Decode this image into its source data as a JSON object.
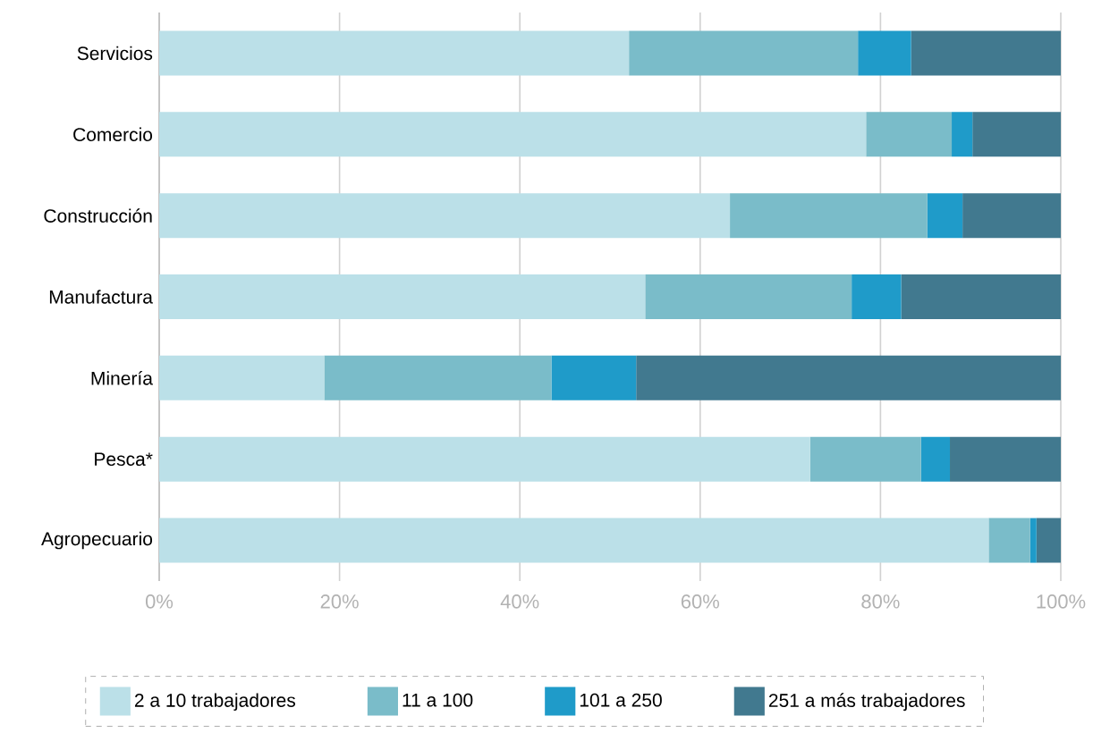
{
  "chart_data": {
    "type": "bar",
    "orientation": "horizontal",
    "stacked": true,
    "categories": [
      "Servicios",
      "Comercio",
      "Construcción",
      "Manufactura",
      "Minería",
      "Pesca*",
      "Agropecuario"
    ],
    "series": [
      {
        "name": "2 a 10 trabajadores",
        "color": "#bbe0e8",
        "values": [
          52.1,
          78.4,
          63.3,
          53.9,
          18.3,
          72.2,
          92.0
        ]
      },
      {
        "name": "11 a 100",
        "color": "#7abcc9",
        "values": [
          25.4,
          9.5,
          21.9,
          22.9,
          25.2,
          12.3,
          4.6
        ]
      },
      {
        "name": "101 a 250",
        "color": "#1f9bc9",
        "values": [
          5.9,
          2.3,
          3.9,
          5.5,
          9.4,
          3.2,
          0.7
        ]
      },
      {
        "name": "251 a más trabajadores",
        "color": "#41798f",
        "values": [
          16.6,
          9.8,
          10.9,
          17.7,
          47.1,
          12.3,
          2.7
        ]
      }
    ],
    "xlim": [
      0,
      100
    ],
    "xticks": [
      {
        "value": 0,
        "label": "0%"
      },
      {
        "value": 20,
        "label": "20%"
      },
      {
        "value": 40,
        "label": "40%"
      },
      {
        "value": 60,
        "label": "60%"
      },
      {
        "value": 80,
        "label": "80%"
      },
      {
        "value": 100,
        "label": "100%"
      }
    ],
    "grid": "x",
    "legend": "bottom"
  }
}
